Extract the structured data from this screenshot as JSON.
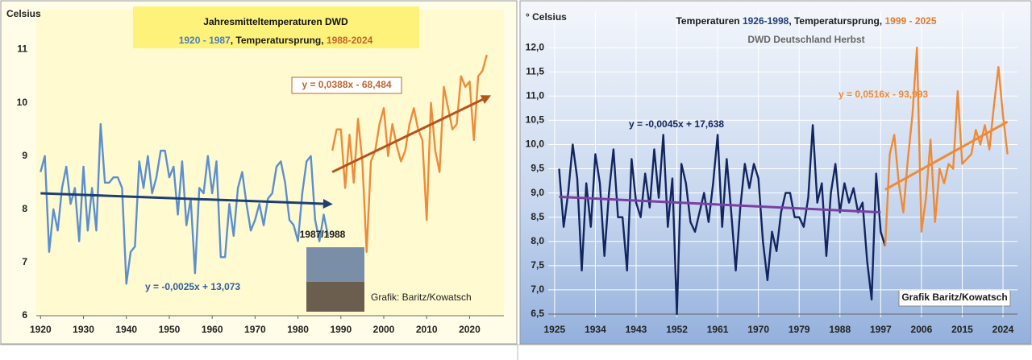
{
  "chart_data": [
    {
      "type": "line",
      "title": "Jahresmitteltemperaturen DWD",
      "subtitle_parts": [
        {
          "text": "1920 - 1987",
          "color": "#4a7ebb"
        },
        {
          "text": ", Temperatursprung, ",
          "color": "#1a1a1a"
        },
        {
          "text": "1988-2024",
          "color": "#c0652a"
        }
      ],
      "y_label": "Celsius",
      "x": [
        1920,
        1921,
        1922,
        1923,
        1924,
        1925,
        1926,
        1927,
        1928,
        1929,
        1930,
        1931,
        1932,
        1933,
        1934,
        1935,
        1936,
        1937,
        1938,
        1939,
        1940,
        1941,
        1942,
        1943,
        1944,
        1945,
        1946,
        1947,
        1948,
        1949,
        1950,
        1951,
        1952,
        1953,
        1954,
        1955,
        1956,
        1957,
        1958,
        1959,
        1960,
        1961,
        1962,
        1963,
        1964,
        1965,
        1966,
        1967,
        1968,
        1969,
        1970,
        1971,
        1972,
        1973,
        1974,
        1975,
        1976,
        1977,
        1978,
        1979,
        1980,
        1981,
        1982,
        1983,
        1984,
        1985,
        1986,
        1987,
        1988,
        1989,
        1990,
        1991,
        1992,
        1993,
        1994,
        1995,
        1996,
        1997,
        1998,
        1999,
        2000,
        2001,
        2002,
        2003,
        2004,
        2005,
        2006,
        2007,
        2008,
        2009,
        2010,
        2011,
        2012,
        2013,
        2014,
        2015,
        2016,
        2017,
        2018,
        2019,
        2020,
        2021,
        2022,
        2023,
        2024
      ],
      "series": [
        {
          "color": "#5b8fd0",
          "values": [
            8.7,
            9.0,
            7.2,
            8.0,
            7.6,
            8.4,
            8.8,
            8.1,
            8.4,
            7.4,
            8.8,
            7.6,
            8.4,
            7.6,
            9.6,
            8.5,
            8.5,
            8.6,
            8.6,
            8.4,
            6.6,
            7.2,
            7.3,
            8.9,
            8.4,
            9.0,
            8.3,
            8.6,
            9.1,
            9.1,
            8.6,
            8.8,
            7.9,
            8.9,
            7.7,
            8.2,
            6.8,
            8.4,
            8.3,
            9.0,
            8.3,
            8.9,
            7.1,
            7.1,
            8.1,
            7.5,
            8.4,
            8.7,
            8.1,
            7.6,
            7.8,
            8.1,
            7.7,
            8.2,
            8.3,
            8.8,
            8.9,
            8.5,
            7.8,
            7.7,
            7.4,
            8.3,
            8.9,
            9.0,
            7.8,
            7.4,
            7.9,
            7.5,
            null,
            null,
            null,
            null,
            null,
            null,
            null,
            null,
            null,
            null,
            null,
            null,
            null,
            null,
            null,
            null,
            null,
            null,
            null,
            null,
            null,
            null,
            null,
            null,
            null,
            null,
            null,
            null,
            null,
            null,
            null,
            null,
            null,
            null,
            null,
            null,
            null
          ]
        },
        {
          "color": "#ed8b3c",
          "values": [
            null,
            null,
            null,
            null,
            null,
            null,
            null,
            null,
            null,
            null,
            null,
            null,
            null,
            null,
            null,
            null,
            null,
            null,
            null,
            null,
            null,
            null,
            null,
            null,
            null,
            null,
            null,
            null,
            null,
            null,
            null,
            null,
            null,
            null,
            null,
            null,
            null,
            null,
            null,
            null,
            null,
            null,
            null,
            null,
            null,
            null,
            null,
            null,
            null,
            null,
            null,
            null,
            null,
            null,
            null,
            null,
            null,
            null,
            null,
            null,
            null,
            null,
            null,
            null,
            null,
            null,
            null,
            null,
            9.1,
            9.5,
            9.5,
            8.4,
            9.4,
            8.5,
            9.7,
            8.9,
            7.2,
            8.9,
            9.1,
            9.6,
            9.9,
            9.0,
            9.6,
            9.2,
            8.9,
            9.1,
            9.6,
            9.9,
            9.5,
            9.3,
            7.8,
            10.0,
            9.1,
            8.7,
            10.3,
            9.9,
            9.5,
            9.6,
            10.5,
            10.3,
            10.4,
            9.3,
            10.5,
            10.6,
            10.9
          ]
        }
      ],
      "trends": [
        {
          "color": "#1f3f73",
          "x": [
            1920,
            1987
          ],
          "values": [
            8.3,
            8.1
          ]
        },
        {
          "color": "#b4541c",
          "x": [
            1988,
            2024
          ],
          "values": [
            8.7,
            10.1
          ]
        }
      ],
      "annotations": [
        {
          "text": "y = 0,0388x - 68,484",
          "color": "#c0652a"
        },
        {
          "text": "y = -0,0025x + 13,073",
          "color": "#2e5f9e"
        },
        {
          "text": "1987/1988",
          "color": "#1a1a1a"
        },
        {
          "text": "Grafik: Baritz/Kowatsch",
          "color": "#222222"
        }
      ],
      "xlim": [
        1919,
        2028
      ],
      "xticks": [
        1920,
        1930,
        1940,
        1950,
        1960,
        1970,
        1980,
        1990,
        2000,
        2010,
        2020
      ],
      "ylim": [
        6,
        11.75
      ],
      "yticks": [
        6,
        7,
        8,
        9,
        10,
        11
      ],
      "grid": false
    },
    {
      "type": "line",
      "title_parts": [
        {
          "text": "Temperaturen ",
          "color": "#1a1a1a"
        },
        {
          "text": "1926-1998",
          "color": "#1f3f73"
        },
        {
          "text": ", Temperatursprung, ",
          "color": "#1a1a1a"
        },
        {
          "text": "1999 - 2025",
          "color": "#e07b2e"
        }
      ],
      "subtitle": "DWD Deutschland Herbst",
      "y_label": "° Celsius",
      "x": [
        1926,
        1927,
        1928,
        1929,
        1930,
        1931,
        1932,
        1933,
        1934,
        1935,
        1936,
        1937,
        1938,
        1939,
        1940,
        1941,
        1942,
        1943,
        1944,
        1945,
        1946,
        1947,
        1948,
        1949,
        1950,
        1951,
        1952,
        1953,
        1954,
        1955,
        1956,
        1957,
        1958,
        1959,
        1960,
        1961,
        1962,
        1963,
        1964,
        1965,
        1966,
        1967,
        1968,
        1969,
        1970,
        1971,
        1972,
        1973,
        1974,
        1975,
        1976,
        1977,
        1978,
        1979,
        1980,
        1981,
        1982,
        1983,
        1984,
        1985,
        1986,
        1987,
        1988,
        1989,
        1990,
        1991,
        1992,
        1993,
        1994,
        1995,
        1996,
        1997,
        1998,
        1999,
        2000,
        2001,
        2002,
        2003,
        2004,
        2005,
        2006,
        2007,
        2008,
        2009,
        2010,
        2011,
        2012,
        2013,
        2014,
        2015,
        2016,
        2017,
        2018,
        2019,
        2020,
        2021,
        2022,
        2023,
        2024,
        2025
      ],
      "series": [
        {
          "color": "#13255e",
          "values": [
            9.5,
            8.3,
            9.0,
            10.0,
            9.3,
            7.4,
            9.2,
            8.3,
            9.8,
            9.2,
            7.7,
            9.0,
            9.9,
            8.5,
            8.5,
            7.4,
            9.7,
            8.8,
            8.5,
            9.4,
            8.7,
            9.9,
            8.9,
            10.2,
            8.3,
            9.3,
            6.5,
            9.6,
            9.2,
            8.4,
            8.2,
            8.6,
            9.0,
            8.4,
            9.2,
            10.2,
            8.3,
            9.7,
            8.6,
            7.4,
            8.7,
            9.6,
            9.1,
            9.6,
            9.3,
            8.0,
            7.2,
            8.2,
            7.8,
            8.6,
            9.0,
            9.0,
            8.5,
            8.5,
            8.3,
            8.9,
            10.4,
            8.8,
            9.2,
            7.7,
            9.0,
            9.6,
            8.6,
            9.2,
            8.8,
            9.1,
            8.6,
            8.8,
            7.6,
            6.8,
            9.4,
            8.2,
            7.9,
            null,
            null,
            null,
            null,
            null,
            null,
            null,
            null,
            null,
            null,
            null,
            null,
            null,
            null,
            null,
            null,
            null,
            null,
            null,
            null,
            null,
            null,
            null,
            null,
            null,
            null,
            null
          ]
        },
        {
          "color": "#ef8a35",
          "values": [
            null,
            null,
            null,
            null,
            null,
            null,
            null,
            null,
            null,
            null,
            null,
            null,
            null,
            null,
            null,
            null,
            null,
            null,
            null,
            null,
            null,
            null,
            null,
            null,
            null,
            null,
            null,
            null,
            null,
            null,
            null,
            null,
            null,
            null,
            null,
            null,
            null,
            null,
            null,
            null,
            null,
            null,
            null,
            null,
            null,
            null,
            null,
            null,
            null,
            null,
            null,
            null,
            null,
            null,
            null,
            null,
            null,
            null,
            null,
            null,
            null,
            null,
            null,
            null,
            null,
            null,
            null,
            null,
            null,
            null,
            null,
            null,
            7.9,
            9.8,
            10.2,
            9.2,
            8.6,
            9.7,
            10.6,
            12.0,
            8.2,
            8.9,
            10.1,
            8.4,
            9.5,
            9.2,
            9.6,
            9.5,
            11.1,
            9.6,
            9.7,
            9.8,
            10.3,
            10.0,
            10.4,
            9.9,
            10.8,
            11.6,
            10.6,
            9.8
          ]
        }
      ],
      "trends": [
        {
          "color": "#7a3fa3",
          "x": [
            1926,
            1997
          ],
          "values": [
            8.92,
            8.6
          ]
        },
        {
          "color": "#ef8a35",
          "x": [
            1998,
            2025
          ],
          "values": [
            9.07,
            10.47
          ]
        }
      ],
      "annotations": [
        {
          "text": "y = -0,0045x + 17,638",
          "color": "#13255e"
        },
        {
          "text": "y = 0,0516x - 93,993",
          "color": "#ef8a35"
        },
        {
          "text": "Grafik Baritz/Kowatsch",
          "color": "#1a1a1a"
        }
      ],
      "xlim": [
        1923.6,
        2027.2
      ],
      "xticks": [
        1925,
        1934,
        1943,
        1952,
        1961,
        1970,
        1979,
        1988,
        1997,
        2006,
        2015,
        2024
      ],
      "ylim": [
        6.5,
        12.75
      ],
      "yticks": [
        {
          "value": 6.5,
          "label": "6,5"
        },
        {
          "value": 7.0,
          "label": "7,0"
        },
        {
          "value": 7.5,
          "label": "7,5"
        },
        {
          "value": 8.0,
          "label": "8,0"
        },
        {
          "value": 8.5,
          "label": "8,5"
        },
        {
          "value": 9.0,
          "label": "9,0"
        },
        {
          "value": 9.5,
          "label": "9,5"
        },
        {
          "value": 10.0,
          "label": "10,0"
        },
        {
          "value": 10.5,
          "label": "10,5"
        },
        {
          "value": 11.0,
          "label": "11,0"
        },
        {
          "value": 11.5,
          "label": "11,5"
        },
        {
          "value": 12.0,
          "label": "12,0"
        }
      ],
      "grid": true
    }
  ]
}
